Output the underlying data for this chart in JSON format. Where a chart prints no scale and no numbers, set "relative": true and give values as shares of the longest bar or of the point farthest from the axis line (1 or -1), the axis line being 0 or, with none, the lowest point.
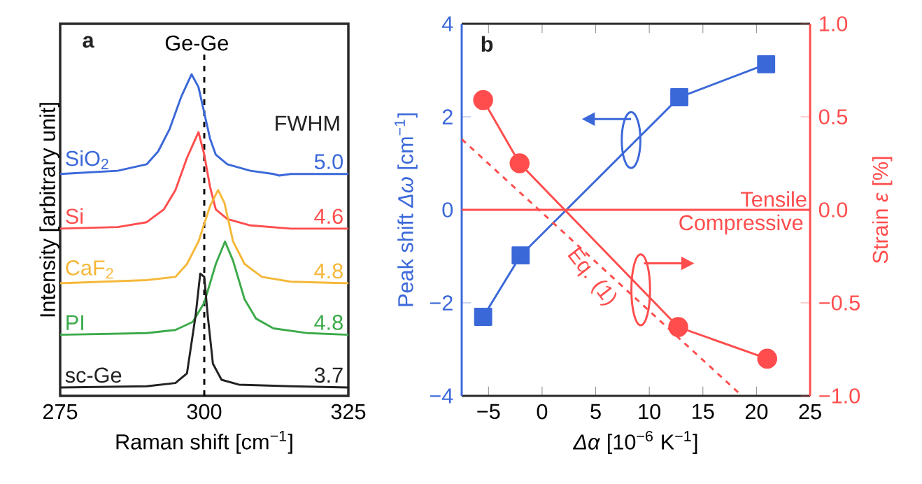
{
  "chart_data": [
    {
      "type": "line",
      "relative": true,
      "xlabel": "Raman shift [cm$^{−1}$]",
      "ylabel": "Intensity [arbitrary unit]",
      "xlim": [
        275,
        325
      ],
      "xticks": [
        275,
        300,
        325
      ],
      "grid": false,
      "line_style": "solid",
      "marker": "none",
      "series": [
        {
          "name": "SiO$_{2}$",
          "color": "#3b68d9",
          "x": [
            275,
            285,
            290,
            292,
            294,
            296,
            297.8,
            299,
            300,
            301,
            302,
            304,
            308,
            312,
            313,
            315,
            325
          ],
          "values": [
            0.69,
            0.7,
            0.72,
            0.76,
            0.83,
            0.93,
            1.0,
            0.96,
            0.88,
            0.8,
            0.75,
            0.72,
            0.7,
            0.69,
            0.685,
            0.69,
            0.69
          ]
        },
        {
          "name": "Si",
          "color": "#ff4d4d",
          "x": [
            275,
            285,
            290,
            293,
            295,
            297,
            299,
            300,
            301,
            302,
            304,
            308,
            315,
            325
          ],
          "values": [
            0.52,
            0.525,
            0.54,
            0.58,
            0.64,
            0.74,
            0.82,
            0.75,
            0.65,
            0.58,
            0.55,
            0.53,
            0.52,
            0.52
          ]
        },
        {
          "name": "CaF$_{2}$",
          "color": "#f5b83a",
          "x": [
            275,
            290,
            295,
            297,
            299,
            301,
            302.4,
            303.5,
            305,
            307,
            310,
            315,
            325
          ],
          "values": [
            0.35,
            0.36,
            0.37,
            0.41,
            0.48,
            0.59,
            0.64,
            0.6,
            0.48,
            0.41,
            0.37,
            0.355,
            0.35
          ]
        },
        {
          "name": "PI",
          "color": "#3caa4a",
          "x": [
            275,
            290,
            295,
            298,
            300,
            302,
            303.6,
            305,
            307,
            309,
            312,
            318,
            325
          ],
          "values": [
            0.19,
            0.195,
            0.205,
            0.23,
            0.29,
            0.41,
            0.48,
            0.42,
            0.3,
            0.24,
            0.21,
            0.195,
            0.19
          ]
        },
        {
          "name": "sc-Ge",
          "color": "#222222",
          "x": [
            275,
            290,
            295,
            297,
            298.5,
            299.3,
            300,
            300.6,
            301.5,
            303,
            306,
            315,
            325
          ],
          "values": [
            0.026,
            0.03,
            0.04,
            0.07,
            0.25,
            0.38,
            0.37,
            0.25,
            0.1,
            0.05,
            0.035,
            0.03,
            0.026
          ]
        }
      ],
      "ref_lines": [
        {
          "axis": "x",
          "value": 300,
          "label": "Ge-Ge",
          "color": "#000000",
          "line_style": "dashed"
        }
      ],
      "annotations": [
        "**a**",
        "FWHM",
        "5.0",
        "4.6",
        "4.8",
        "4.8",
        "3.7"
      ]
    },
    {
      "type": "line",
      "xlabel": "*Δα* [10$^{−6}$ K$^{−1}$]",
      "ylabel": "Peak shift *Δω* [cm$^{−1}$]",
      "y2label": "Strain *ε* [%]",
      "xlim": [
        -7.5,
        25
      ],
      "xticks": [
        {
          "value": -5,
          "label": "−5"
        },
        0,
        5,
        10,
        15,
        20,
        25
      ],
      "ylim": [
        -4,
        4
      ],
      "yticks": [
        {
          "value": -4,
          "label": "−4"
        },
        {
          "value": -2,
          "label": "−2"
        },
        0,
        2,
        4
      ],
      "y2lim": [
        -1.0,
        1.0
      ],
      "y2ticks": [
        {
          "value": -1.0,
          "label": "−1.0"
        },
        {
          "value": -0.5,
          "label": "−0.5"
        },
        {
          "value": 0.0,
          "label": "0.0"
        },
        {
          "value": 0.5,
          "label": "0.5"
        },
        {
          "value": 1.0,
          "label": "1.0"
        }
      ],
      "grid": false,
      "series": [
        {
          "color": "#3b68d9",
          "marker": "square",
          "x": [
            -5.5,
            -2.0,
            12.8,
            20.9
          ],
          "values": [
            -2.3,
            -0.98,
            2.42,
            3.13
          ]
        },
        {
          "color": "#ff4d4d",
          "marker": "circle",
          "axis": "y2",
          "x": [
            -5.5,
            -2.1,
            12.7,
            21.0
          ],
          "values": [
            0.59,
            0.25,
            -0.63,
            -0.8
          ]
        },
        {
          "color": "#ff4d4d",
          "marker": "none",
          "line_style": "dashed",
          "axis": "y2",
          "x": [
            -7.5,
            18.65
          ],
          "values": [
            0.38,
            -1.0
          ]
        }
      ],
      "ref_lines": [
        {
          "axis": "y2",
          "value": 0,
          "label": "Tensile",
          "color": "#ff4d4d"
        }
      ],
      "annotations": [
        "**b**",
        "Compressive",
        "Eq. (1)"
      ]
    }
  ]
}
